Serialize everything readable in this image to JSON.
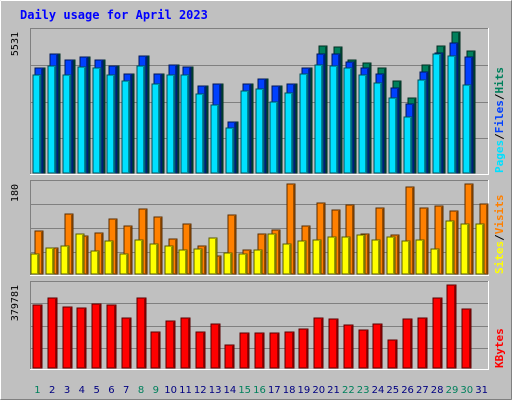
{
  "chart_data": {
    "type": "bar",
    "title": "Daily usage for April 2023",
    "colors": {
      "hits": "#00805c",
      "files": "#0040ff",
      "pages": "#00e0ff",
      "visits": "#ff8000",
      "sites": "#ffff00",
      "kbytes": "#ff0000",
      "weekend": "#00805c",
      "weekday": "#000080",
      "background": "#c0c0c0",
      "plot": "#c0c0c0"
    },
    "days": [
      "1",
      "2",
      "3",
      "4",
      "5",
      "6",
      "7",
      "8",
      "9",
      "10",
      "11",
      "12",
      "13",
      "14",
      "15",
      "16",
      "17",
      "18",
      "19",
      "20",
      "21",
      "22",
      "23",
      "24",
      "25",
      "26",
      "27",
      "28",
      "29",
      "30",
      "31"
    ],
    "weekend_days": [
      1,
      8,
      9,
      15,
      16,
      22,
      23,
      29,
      30
    ],
    "panels": [
      {
        "id": "usage",
        "max_label": "5531",
        "ymax": 5531,
        "right_labels": [
          {
            "text": "Hits",
            "color": "#00805c"
          },
          {
            "text": "Files",
            "color": "#0040ff"
          },
          {
            "text": "Pages",
            "color": "#00e0ff"
          }
        ],
        "series": [
          {
            "name": "Hits",
            "color": "#00805c",
            "values": [
              4100,
              4680,
              4450,
              4550,
              4450,
              4200,
              3900,
              4600,
              3900,
              4250,
              4150,
              3400,
              3500,
              2000,
              3500,
              3700,
              3400,
              3500,
              4100,
              5000,
              4950,
              4450,
              4300,
              4100,
              3600,
              2950,
              4250,
              5000,
              5531,
              4800,
              0
            ]
          },
          {
            "name": "Files",
            "color": "#0040ff",
            "values": [
              4100,
              4680,
              4450,
              4550,
              4450,
              4200,
              3900,
              4600,
              3900,
              4250,
              4150,
              3400,
              3500,
              2000,
              3500,
              3700,
              3400,
              3500,
              4100,
              4650,
              4650,
              4350,
              4100,
              3900,
              3350,
              2700,
              3950,
              4700,
              5100,
              4550,
              0
            ]
          },
          {
            "name": "Pages",
            "color": "#00e0ff",
            "values": [
              3850,
              4200,
              3850,
              4150,
              4100,
              3850,
              3600,
              4200,
              3500,
              3850,
              3850,
              3100,
              2650,
              1750,
              3200,
              3300,
              2800,
              3150,
              3900,
              4250,
              4200,
              4100,
              3850,
              3550,
              2950,
              2200,
              3650,
              4650,
              4600,
              3450,
              0
            ]
          }
        ]
      },
      {
        "id": "visits",
        "max_label": "180",
        "ymax": 180,
        "right_labels": [
          {
            "text": "Visits",
            "color": "#ff8000"
          },
          {
            "text": "Sites",
            "color": "#ffff00"
          }
        ],
        "series": [
          {
            "name": "Visits",
            "color": "#ff8000",
            "values": [
              85,
              52,
              120,
              75,
              82,
              110,
              95,
              130,
              115,
              70,
              100,
              55,
              35,
              118,
              48,
              80,
              88,
              180,
              96,
              142,
              128,
              138,
              80,
              132,
              78,
              174,
              132,
              135,
              125,
              180,
              140
            ]
          },
          {
            "name": "Sites",
            "color": "#ffff00",
            "values": [
              40,
              52,
              55,
              80,
              45,
              65,
              40,
              68,
              60,
              55,
              48,
              50,
              72,
              42,
              40,
              48,
              80,
              60,
              65,
              68,
              74,
              73,
              78,
              68,
              74,
              65,
              68,
              50,
              106,
              100,
              100
            ]
          }
        ]
      },
      {
        "id": "kbytes",
        "max_label": "379781",
        "ymax": 379781,
        "right_labels": [
          {
            "text": "KBytes",
            "color": "#ff0000"
          }
        ],
        "series": [
          {
            "name": "KBytes",
            "color": "#ff0000",
            "values": [
              290000,
              320000,
              280000,
              275000,
              295000,
              290000,
              230000,
              320000,
              165000,
              215000,
              230000,
              165000,
              200000,
              105000,
              158000,
              162000,
              162000,
              165000,
              178000,
              230000,
              222000,
              198000,
              173000,
              203000,
              128000,
              222000,
              230000,
              320000,
              379781,
              268000,
              0
            ]
          }
        ]
      }
    ]
  }
}
